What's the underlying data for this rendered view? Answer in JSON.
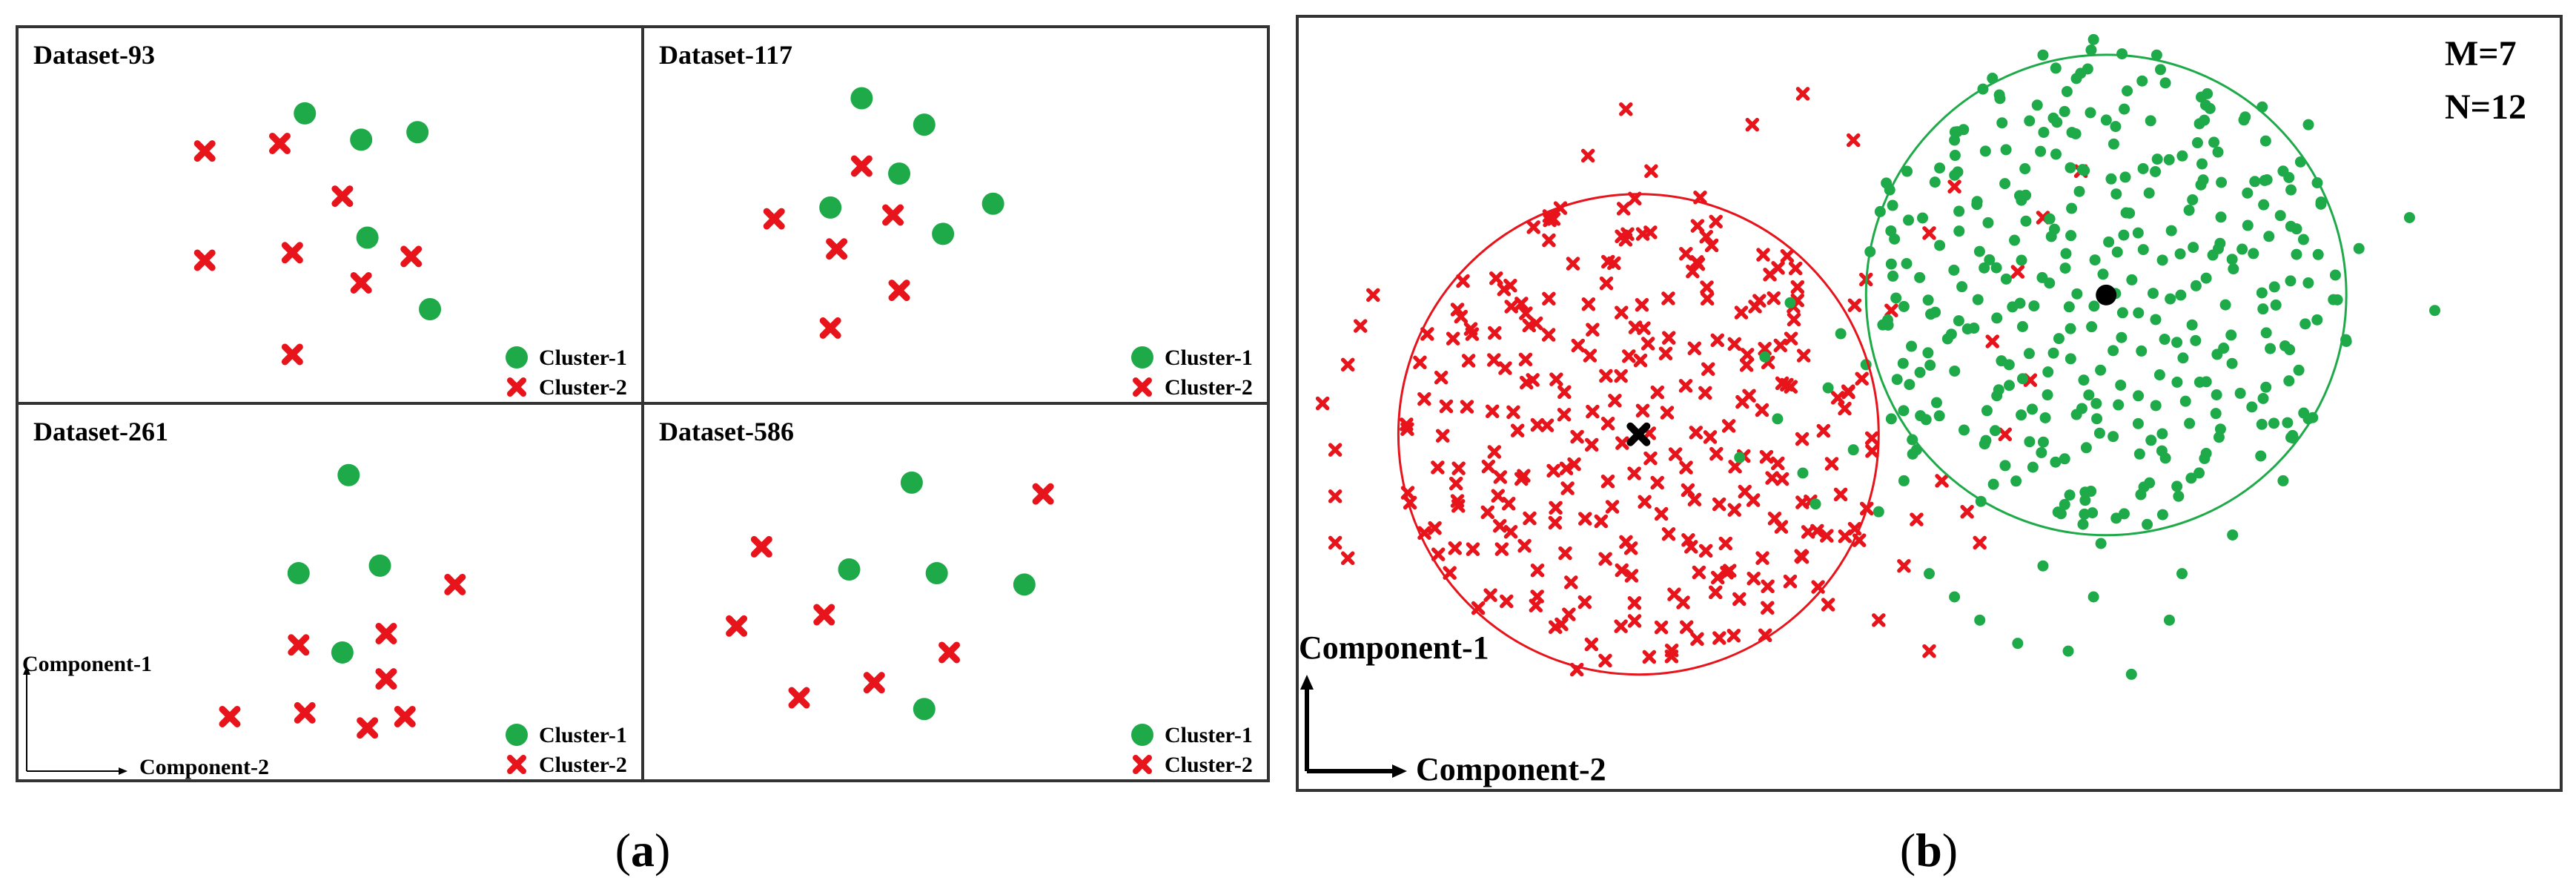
{
  "colors": {
    "cluster1": "#1faa4a",
    "cluster2": "#e8141c",
    "frame": "#333333",
    "centroid": "#000000"
  },
  "icons": {
    "cluster1_marker": "green-circle-icon",
    "cluster2_marker": "red-cross-icon",
    "centroid2_marker": "black-cross-icon",
    "centroid1_marker": "black-dot-icon"
  },
  "figure_a": {
    "caption_letter": "a",
    "axis_y": "Component-1",
    "axis_x": "Component-2"
  },
  "figure_b": {
    "caption_letter": "b",
    "m_label": "M=7",
    "n_label": "N=12",
    "axis_y": "Component-1",
    "axis_x": "Component-2"
  },
  "chart_data": [
    {
      "type": "scatter",
      "title": "Dataset-93",
      "legend": [
        "Cluster-1",
        "Cluster-2"
      ],
      "legend_position": "bottom-right",
      "xlim": [
        0,
        100
      ],
      "ylim": [
        0,
        100
      ],
      "series": [
        {
          "name": "Cluster-1",
          "marker": "circle",
          "points": [
            [
              46,
              77
            ],
            [
              55,
              70
            ],
            [
              64,
              72
            ],
            [
              56,
              44
            ],
            [
              66,
              25
            ]
          ]
        },
        {
          "name": "Cluster-2",
          "marker": "cross",
          "points": [
            [
              30,
              67
            ],
            [
              42,
              69
            ],
            [
              52,
              55
            ],
            [
              30,
              38
            ],
            [
              44,
              40
            ],
            [
              55,
              32
            ],
            [
              63,
              39
            ],
            [
              44,
              13
            ]
          ]
        }
      ]
    },
    {
      "type": "scatter",
      "title": "Dataset-117",
      "legend": [
        "Cluster-1",
        "Cluster-2"
      ],
      "legend_position": "bottom-right",
      "xlim": [
        0,
        100
      ],
      "ylim": [
        0,
        100
      ],
      "series": [
        {
          "name": "Cluster-1",
          "marker": "circle",
          "points": [
            [
              35,
              81
            ],
            [
              45,
              74
            ],
            [
              41,
              61
            ],
            [
              30,
              52
            ],
            [
              56,
              53
            ],
            [
              48,
              45
            ]
          ]
        },
        {
          "name": "Cluster-2",
          "marker": "cross",
          "points": [
            [
              35,
              63
            ],
            [
              21,
              49
            ],
            [
              40,
              50
            ],
            [
              31,
              41
            ],
            [
              41,
              30
            ],
            [
              30,
              20
            ]
          ]
        }
      ]
    },
    {
      "type": "scatter",
      "title": "Dataset-261",
      "legend": [
        "Cluster-1",
        "Cluster-2"
      ],
      "legend_position": "bottom-right",
      "xlim": [
        0,
        100
      ],
      "ylim": [
        0,
        100
      ],
      "series": [
        {
          "name": "Cluster-1",
          "marker": "circle",
          "points": [
            [
              53,
              81
            ],
            [
              45,
              55
            ],
            [
              58,
              57
            ],
            [
              52,
              34
            ]
          ]
        },
        {
          "name": "Cluster-2",
          "marker": "cross",
          "points": [
            [
              70,
              52
            ],
            [
              45,
              36
            ],
            [
              59,
              39
            ],
            [
              59,
              27
            ],
            [
              34,
              17
            ],
            [
              46,
              18
            ],
            [
              56,
              14
            ],
            [
              62,
              17
            ]
          ]
        }
      ]
    },
    {
      "type": "scatter",
      "title": "Dataset-586",
      "legend": [
        "Cluster-1",
        "Cluster-2"
      ],
      "legend_position": "bottom-right",
      "xlim": [
        0,
        100
      ],
      "ylim": [
        0,
        100
      ],
      "series": [
        {
          "name": "Cluster-1",
          "marker": "circle",
          "points": [
            [
              43,
              79
            ],
            [
              33,
              56
            ],
            [
              47,
              55
            ],
            [
              61,
              52
            ],
            [
              45,
              19
            ]
          ]
        },
        {
          "name": "Cluster-2",
          "marker": "cross",
          "points": [
            [
              64,
              76
            ],
            [
              19,
              62
            ],
            [
              29,
              44
            ],
            [
              15,
              41
            ],
            [
              49,
              34
            ],
            [
              37,
              26
            ],
            [
              25,
              22
            ]
          ]
        }
      ]
    },
    {
      "type": "scatter",
      "title": "",
      "xlim": [
        0,
        100
      ],
      "ylim": [
        0,
        100
      ],
      "generated_points_note": "",
      "clusters": [
        {
          "name": "Cluster-2",
          "marker": "cross",
          "center": [
            27,
            46
          ],
          "radius": 19,
          "count": 260,
          "outliers": [
            [
              2,
              50
            ],
            [
              3,
              44
            ],
            [
              3,
              38
            ],
            [
              4,
              55
            ],
            [
              5,
              60
            ],
            [
              3,
              32
            ],
            [
              4,
              30
            ],
            [
              6,
              64
            ],
            [
              40,
              90
            ],
            [
              44,
              84
            ],
            [
              36,
              86
            ],
            [
              28,
              80
            ],
            [
              26,
              88
            ],
            [
              23,
              82
            ],
            [
              46,
              22
            ],
            [
              48,
              29
            ],
            [
              42,
              24
            ],
            [
              50,
              18
            ],
            [
              39,
              27
            ],
            [
              51,
              40
            ],
            [
              53,
              36
            ],
            [
              54,
              32
            ],
            [
              49,
              35
            ],
            [
              56,
              46
            ],
            [
              55,
              58
            ],
            [
              58,
              53
            ],
            [
              47,
              62
            ],
            [
              50,
              72
            ],
            [
              45,
              66
            ],
            [
              59,
              74
            ],
            [
              62,
              80
            ],
            [
              52,
              78
            ],
            [
              57,
              67
            ]
          ]
        },
        {
          "name": "Cluster-1",
          "marker": "circle",
          "center": [
            64,
            64
          ],
          "radius": 19,
          "count": 330,
          "outliers": [
            [
              43,
              59
            ],
            [
              45,
              55
            ],
            [
              42,
              52
            ],
            [
              47,
              48
            ],
            [
              44,
              44
            ],
            [
              40,
              41
            ],
            [
              38,
              48
            ],
            [
              48,
              40
            ],
            [
              50,
              28
            ],
            [
              52,
              25
            ],
            [
              54,
              22
            ],
            [
              57,
              19
            ],
            [
              61,
              18
            ],
            [
              66,
              15
            ],
            [
              46,
              36
            ],
            [
              49,
              44
            ],
            [
              41,
              37
            ],
            [
              35,
              43
            ],
            [
              37,
              56
            ],
            [
              39,
              63
            ],
            [
              47,
              68
            ],
            [
              52,
              84
            ],
            [
              55,
              92
            ],
            [
              59,
              95
            ],
            [
              63,
              97
            ],
            [
              68,
              95
            ],
            [
              72,
              90
            ],
            [
              75,
              87
            ],
            [
              78,
              80
            ],
            [
              81,
              76
            ],
            [
              84,
              70
            ],
            [
              83,
              58
            ],
            [
              80,
              48
            ],
            [
              78,
              40
            ],
            [
              74,
              33
            ],
            [
              70,
              28
            ],
            [
              69,
              22
            ],
            [
              63,
              25
            ],
            [
              59,
              29
            ],
            [
              80,
              86
            ],
            [
              88,
              74
            ],
            [
              90,
              62
            ]
          ]
        }
      ],
      "centroids": [
        {
          "cluster": "Cluster-2",
          "marker": "black-cross",
          "x": 27,
          "y": 46
        },
        {
          "cluster": "Cluster-1",
          "marker": "black-dot",
          "x": 64,
          "y": 64
        }
      ]
    }
  ]
}
